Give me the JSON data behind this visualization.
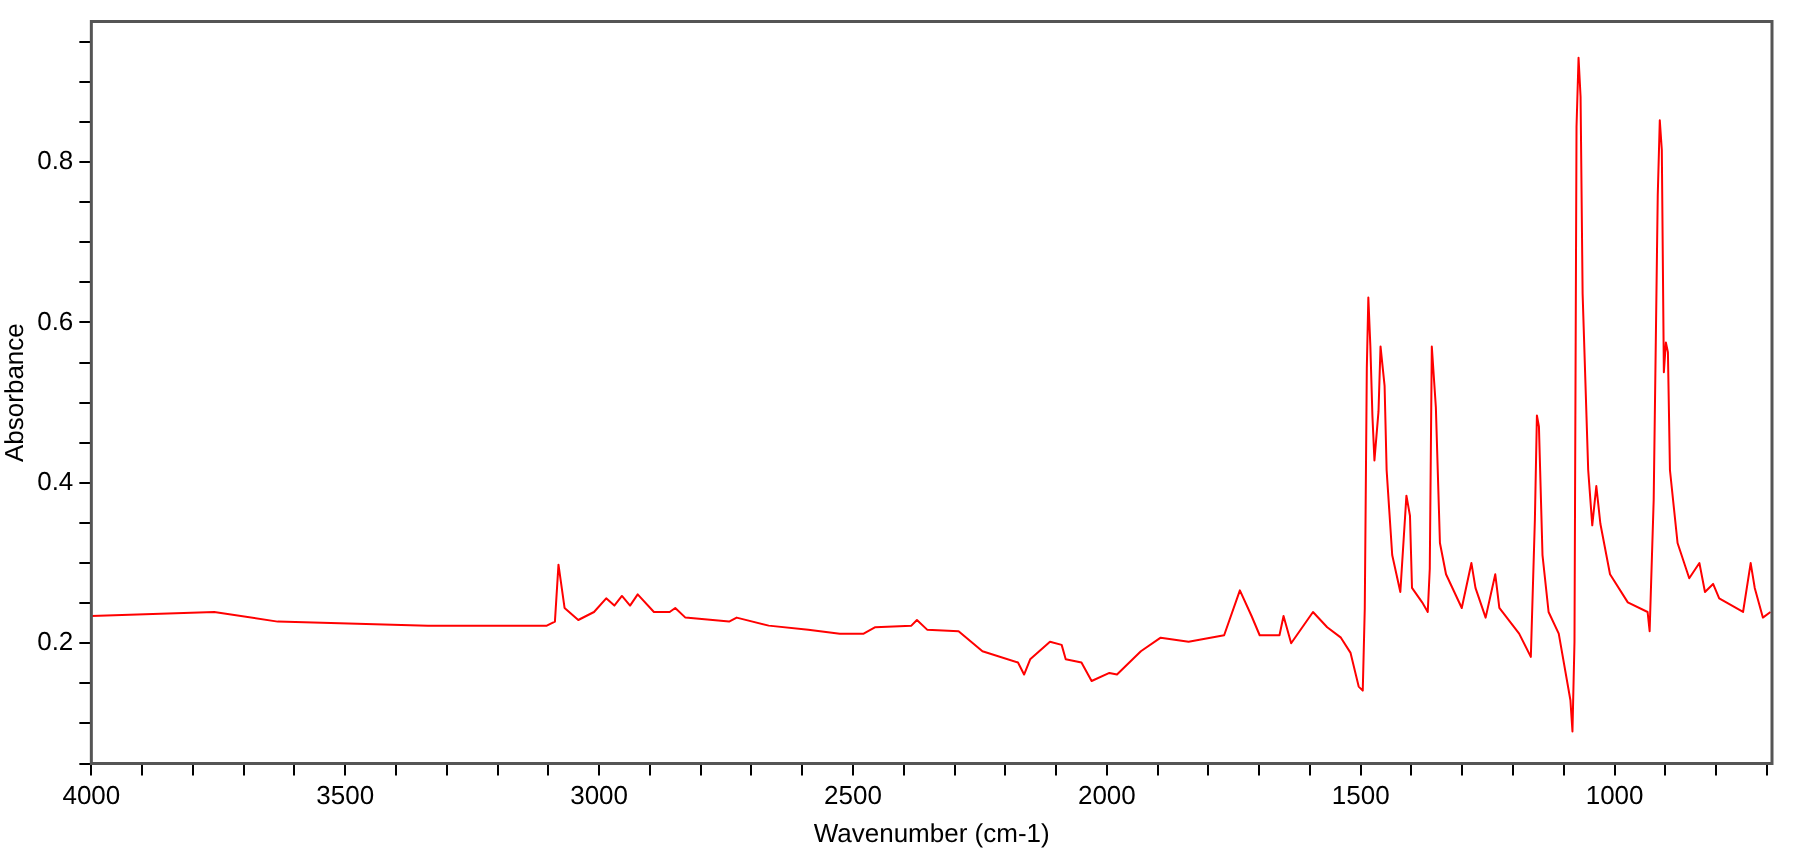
{
  "chart_data": {
    "type": "line",
    "xlabel": "Wavenumber (cm-1)",
    "ylabel": "Absorbance",
    "xlim": [
      4000,
      690
    ],
    "xticks": [
      4000,
      {
        "value": 3900,
        "label": null
      },
      {
        "value": 3800,
        "label": null
      },
      {
        "value": 3700,
        "label": null
      },
      {
        "value": 3600,
        "label": null
      },
      3500,
      {
        "value": 3400,
        "label": null
      },
      {
        "value": 3300,
        "label": null
      },
      {
        "value": 3200,
        "label": null
      },
      {
        "value": 3100,
        "label": null
      },
      3000,
      {
        "value": 2900,
        "label": null
      },
      {
        "value": 2800,
        "label": null
      },
      {
        "value": 2700,
        "label": null
      },
      {
        "value": 2600,
        "label": null
      },
      2500,
      {
        "value": 2400,
        "label": null
      },
      {
        "value": 2300,
        "label": null
      },
      {
        "value": 2200,
        "label": null
      },
      {
        "value": 2100,
        "label": null
      },
      2000,
      {
        "value": 1900,
        "label": null
      },
      {
        "value": 1800,
        "label": null
      },
      {
        "value": 1700,
        "label": null
      },
      {
        "value": 1600,
        "label": null
      },
      1500,
      {
        "value": 1400,
        "label": null
      },
      {
        "value": 1300,
        "label": null
      },
      {
        "value": 1200,
        "label": null
      },
      {
        "value": 1100,
        "label": null
      },
      1000,
      {
        "value": 900,
        "label": null
      },
      {
        "value": 800,
        "label": null
      },
      {
        "value": 700,
        "label": null
      }
    ],
    "ylim": [
      0.05,
      0.975
    ],
    "yticks": [
      {
        "value": 0.05,
        "label": null
      },
      {
        "value": 0.1,
        "label": null
      },
      {
        "value": 0.15,
        "label": null
      },
      0.2,
      {
        "value": 0.25,
        "label": null
      },
      {
        "value": 0.3,
        "label": null
      },
      {
        "value": 0.35,
        "label": null
      },
      0.4,
      {
        "value": 0.45,
        "label": null
      },
      {
        "value": 0.5,
        "label": null
      },
      {
        "value": 0.55,
        "label": null
      },
      0.6,
      {
        "value": 0.65,
        "label": null
      },
      {
        "value": 0.7,
        "label": null
      },
      {
        "value": 0.75,
        "label": null
      },
      0.8,
      {
        "value": 0.85,
        "label": null
      },
      {
        "value": 0.9,
        "label": null
      },
      {
        "value": 0.95,
        "label": null
      }
    ],
    "grid": false,
    "legend": false,
    "marker": "none",
    "line_style": "solid",
    "series": [
      {
        "color": "#ff0000",
        "x": [
          4000,
          3758,
          3633,
          3337,
          3103,
          3087,
          3080,
          3068,
          3041,
          3010,
          2986,
          2970,
          2955,
          2939,
          2924,
          2892,
          2861,
          2850,
          2830,
          2744,
          2729,
          2666,
          2588,
          2526,
          2479,
          2456,
          2385,
          2374,
          2354,
          2292,
          2245,
          2175,
          2163,
          2151,
          2112,
          2089,
          2081,
          2050,
          2030,
          1995,
          1980,
          1933,
          1894,
          1839,
          1769,
          1738,
          1715,
          1699,
          1660,
          1652,
          1637,
          1594,
          1566,
          1539,
          1520,
          1504,
          1496,
          1492,
          1488,
          1485,
          1481,
          1477,
          1473,
          1465,
          1461,
          1453,
          1449,
          1438,
          1422,
          1410,
          1403,
          1399,
          1379,
          1368,
          1364,
          1360,
          1352,
          1344,
          1332,
          1301,
          1282,
          1274,
          1254,
          1235,
          1227,
          1188,
          1165,
          1157,
          1153,
          1149,
          1142,
          1130,
          1110,
          1087,
          1083,
          1079,
          1075,
          1071,
          1067,
          1063,
          1052,
          1044,
          1036,
          1028,
          1009,
          974,
          935,
          931,
          923,
          915,
          911,
          907,
          903,
          899,
          895,
          891,
          876,
          853,
          833,
          822,
          806,
          794,
          747,
          732,
          724,
          708,
          693
        ],
        "values": [
          0.234,
          0.239,
          0.227,
          0.222,
          0.222,
          0.227,
          0.298,
          0.244,
          0.229,
          0.239,
          0.256,
          0.247,
          0.259,
          0.247,
          0.261,
          0.239,
          0.239,
          0.244,
          0.232,
          0.227,
          0.232,
          0.222,
          0.217,
          0.212,
          0.212,
          0.22,
          0.222,
          0.229,
          0.217,
          0.215,
          0.19,
          0.176,
          0.161,
          0.18,
          0.202,
          0.198,
          0.18,
          0.176,
          0.153,
          0.163,
          0.161,
          0.19,
          0.207,
          0.202,
          0.21,
          0.266,
          0.234,
          0.21,
          0.21,
          0.234,
          0.2,
          0.239,
          0.22,
          0.207,
          0.188,
          0.146,
          0.141,
          0.244,
          0.543,
          0.631,
          0.57,
          0.484,
          0.428,
          0.489,
          0.57,
          0.521,
          0.416,
          0.31,
          0.264,
          0.384,
          0.359,
          0.269,
          0.251,
          0.239,
          0.293,
          0.57,
          0.494,
          0.325,
          0.286,
          0.244,
          0.3,
          0.269,
          0.232,
          0.286,
          0.244,
          0.212,
          0.183,
          0.354,
          0.484,
          0.47,
          0.31,
          0.239,
          0.212,
          0.129,
          0.09,
          0.202,
          0.844,
          0.93,
          0.881,
          0.636,
          0.416,
          0.347,
          0.396,
          0.349,
          0.286,
          0.251,
          0.239,
          0.215,
          0.379,
          0.759,
          0.852,
          0.815,
          0.538,
          0.575,
          0.563,
          0.416,
          0.325,
          0.281,
          0.3,
          0.264,
          0.274,
          0.256,
          0.239,
          0.3,
          0.269,
          0.232,
          0.239
        ]
      }
    ]
  }
}
